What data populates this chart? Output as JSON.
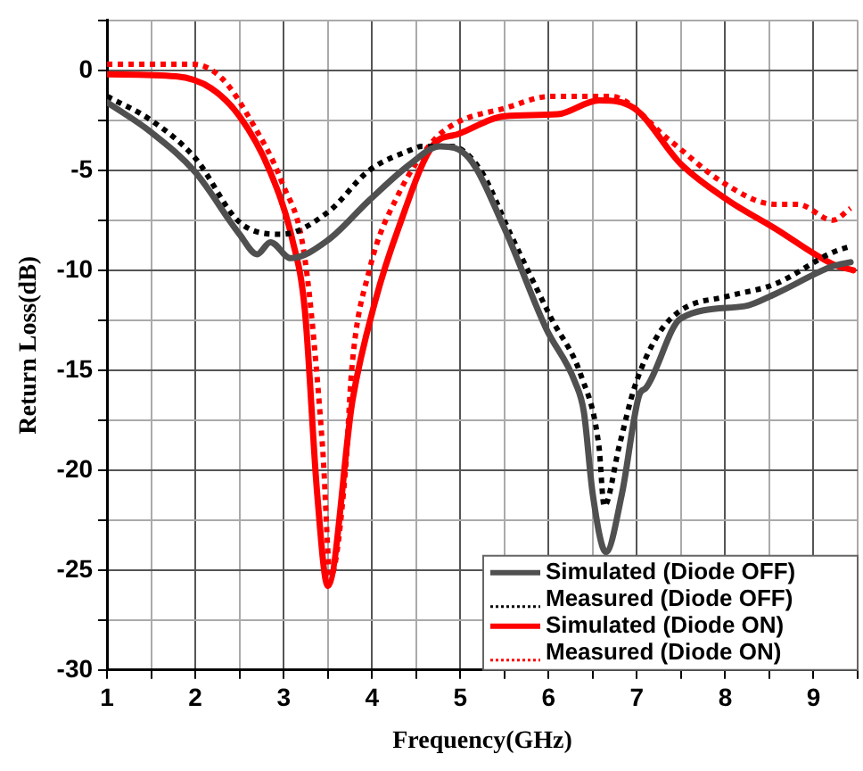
{
  "chart_data": {
    "type": "line",
    "xlabel": "Frequency(GHz)",
    "ylabel": "Return Loss(dB)",
    "xlim": [
      1,
      9.5
    ],
    "ylim": [
      -30,
      2.5
    ],
    "xticks": [
      1,
      {
        "value": 1.5,
        "label": null
      },
      2,
      {
        "value": 2.5,
        "label": null
      },
      3,
      {
        "value": 3.5,
        "label": null
      },
      4,
      {
        "value": 4.5,
        "label": null
      },
      5,
      {
        "value": 5.5,
        "label": null
      },
      6,
      {
        "value": 6.5,
        "label": null
      },
      7,
      {
        "value": 7.5,
        "label": null
      },
      8,
      {
        "value": 8.5,
        "label": null
      },
      9,
      {
        "value": 9.5,
        "label": null
      }
    ],
    "yticks": [
      -30,
      {
        "value": -27.5,
        "label": null
      },
      -25,
      {
        "value": -22.5,
        "label": null
      },
      -20,
      {
        "value": -17.5,
        "label": null
      },
      -15,
      {
        "value": -12.5,
        "label": null
      },
      -10,
      {
        "value": -7.5,
        "label": null
      },
      -5,
      {
        "value": -2.5,
        "label": null
      },
      0,
      {
        "value": 2.5,
        "label": null
      }
    ],
    "grid": true,
    "legend": "bottom right",
    "marker": "none",
    "series": [
      {
        "name": "Simulated (Diode OFF)",
        "color": "#505050",
        "line_style": "solid",
        "x": [
          1.0,
          1.5,
          2.0,
          2.5,
          2.7,
          2.85,
          3.08,
          3.5,
          3.97,
          4.43,
          4.77,
          5.1,
          5.5,
          5.97,
          6.3,
          6.4,
          6.5,
          6.65,
          6.83,
          7.03,
          7.1,
          7.5,
          8.22,
          8.56,
          9.22,
          9.42
        ],
        "values": [
          -1.6,
          -3.1,
          -5.1,
          -8.2,
          -9.2,
          -8.6,
          -9.4,
          -8.5,
          -6.5,
          -4.7,
          -3.8,
          -4.4,
          -7.9,
          -12.9,
          -15.6,
          -17.1,
          -21.2,
          -24.1,
          -21.2,
          -16.2,
          -15.9,
          -12.4,
          -11.8,
          -11.2,
          -9.8,
          -9.6
        ]
      },
      {
        "name": "Measured (Diode OFF)",
        "color": "#000000",
        "line_style": "dotted",
        "x": [
          1.0,
          1.5,
          2.0,
          2.5,
          2.98,
          3.5,
          3.97,
          4.43,
          4.57,
          4.9,
          5.23,
          5.57,
          6.03,
          6.37,
          6.57,
          6.63,
          6.8,
          6.97,
          7.23,
          7.5,
          8.03,
          8.56,
          9.22,
          9.42
        ],
        "values": [
          -1.3,
          -2.5,
          -4.4,
          -7.6,
          -8.2,
          -7.1,
          -5.0,
          -4.0,
          -3.8,
          -3.8,
          -5.0,
          -8.2,
          -12.4,
          -15.3,
          -18.8,
          -21.8,
          -18.8,
          -15.9,
          -13.3,
          -12.0,
          -11.3,
          -10.7,
          -9.1,
          -8.8
        ]
      },
      {
        "name": "Simulated (Diode ON)",
        "color": "#ff0000",
        "line_style": "solid",
        "x": [
          1.0,
          1.78,
          2.18,
          2.5,
          2.84,
          3.1,
          3.24,
          3.38,
          3.5,
          3.78,
          4.04,
          4.3,
          4.7,
          4.97,
          5.5,
          6.1,
          6.57,
          6.97,
          7.5,
          8.03,
          8.56,
          9.22,
          9.45
        ],
        "values": [
          -0.2,
          -0.3,
          -0.9,
          -2.3,
          -5.0,
          -8.5,
          -12.0,
          -21.2,
          -25.8,
          -16.5,
          -11.5,
          -7.9,
          -3.7,
          -3.2,
          -2.3,
          -2.2,
          -1.5,
          -1.9,
          -4.7,
          -6.5,
          -7.9,
          -9.7,
          -10.0
        ]
      },
      {
        "name": "Measured (Diode ON)",
        "color": "#ff0000",
        "line_style": "dotted",
        "x": [
          1.0,
          1.98,
          2.3,
          2.64,
          2.98,
          3.24,
          3.44,
          3.53,
          3.7,
          3.77,
          3.97,
          4.3,
          4.7,
          4.97,
          5.5,
          6.03,
          6.7,
          7.37,
          7.97,
          8.56,
          8.82,
          9.22,
          9.42
        ],
        "values": [
          0.3,
          0.3,
          -0.4,
          -2.6,
          -5.6,
          -9.4,
          -18.8,
          -25.3,
          -20.0,
          -15.0,
          -10.0,
          -6.2,
          -3.5,
          -2.6,
          -1.9,
          -1.3,
          -1.3,
          -3.5,
          -5.6,
          -6.7,
          -6.7,
          -7.5,
          -6.9
        ]
      }
    ]
  }
}
